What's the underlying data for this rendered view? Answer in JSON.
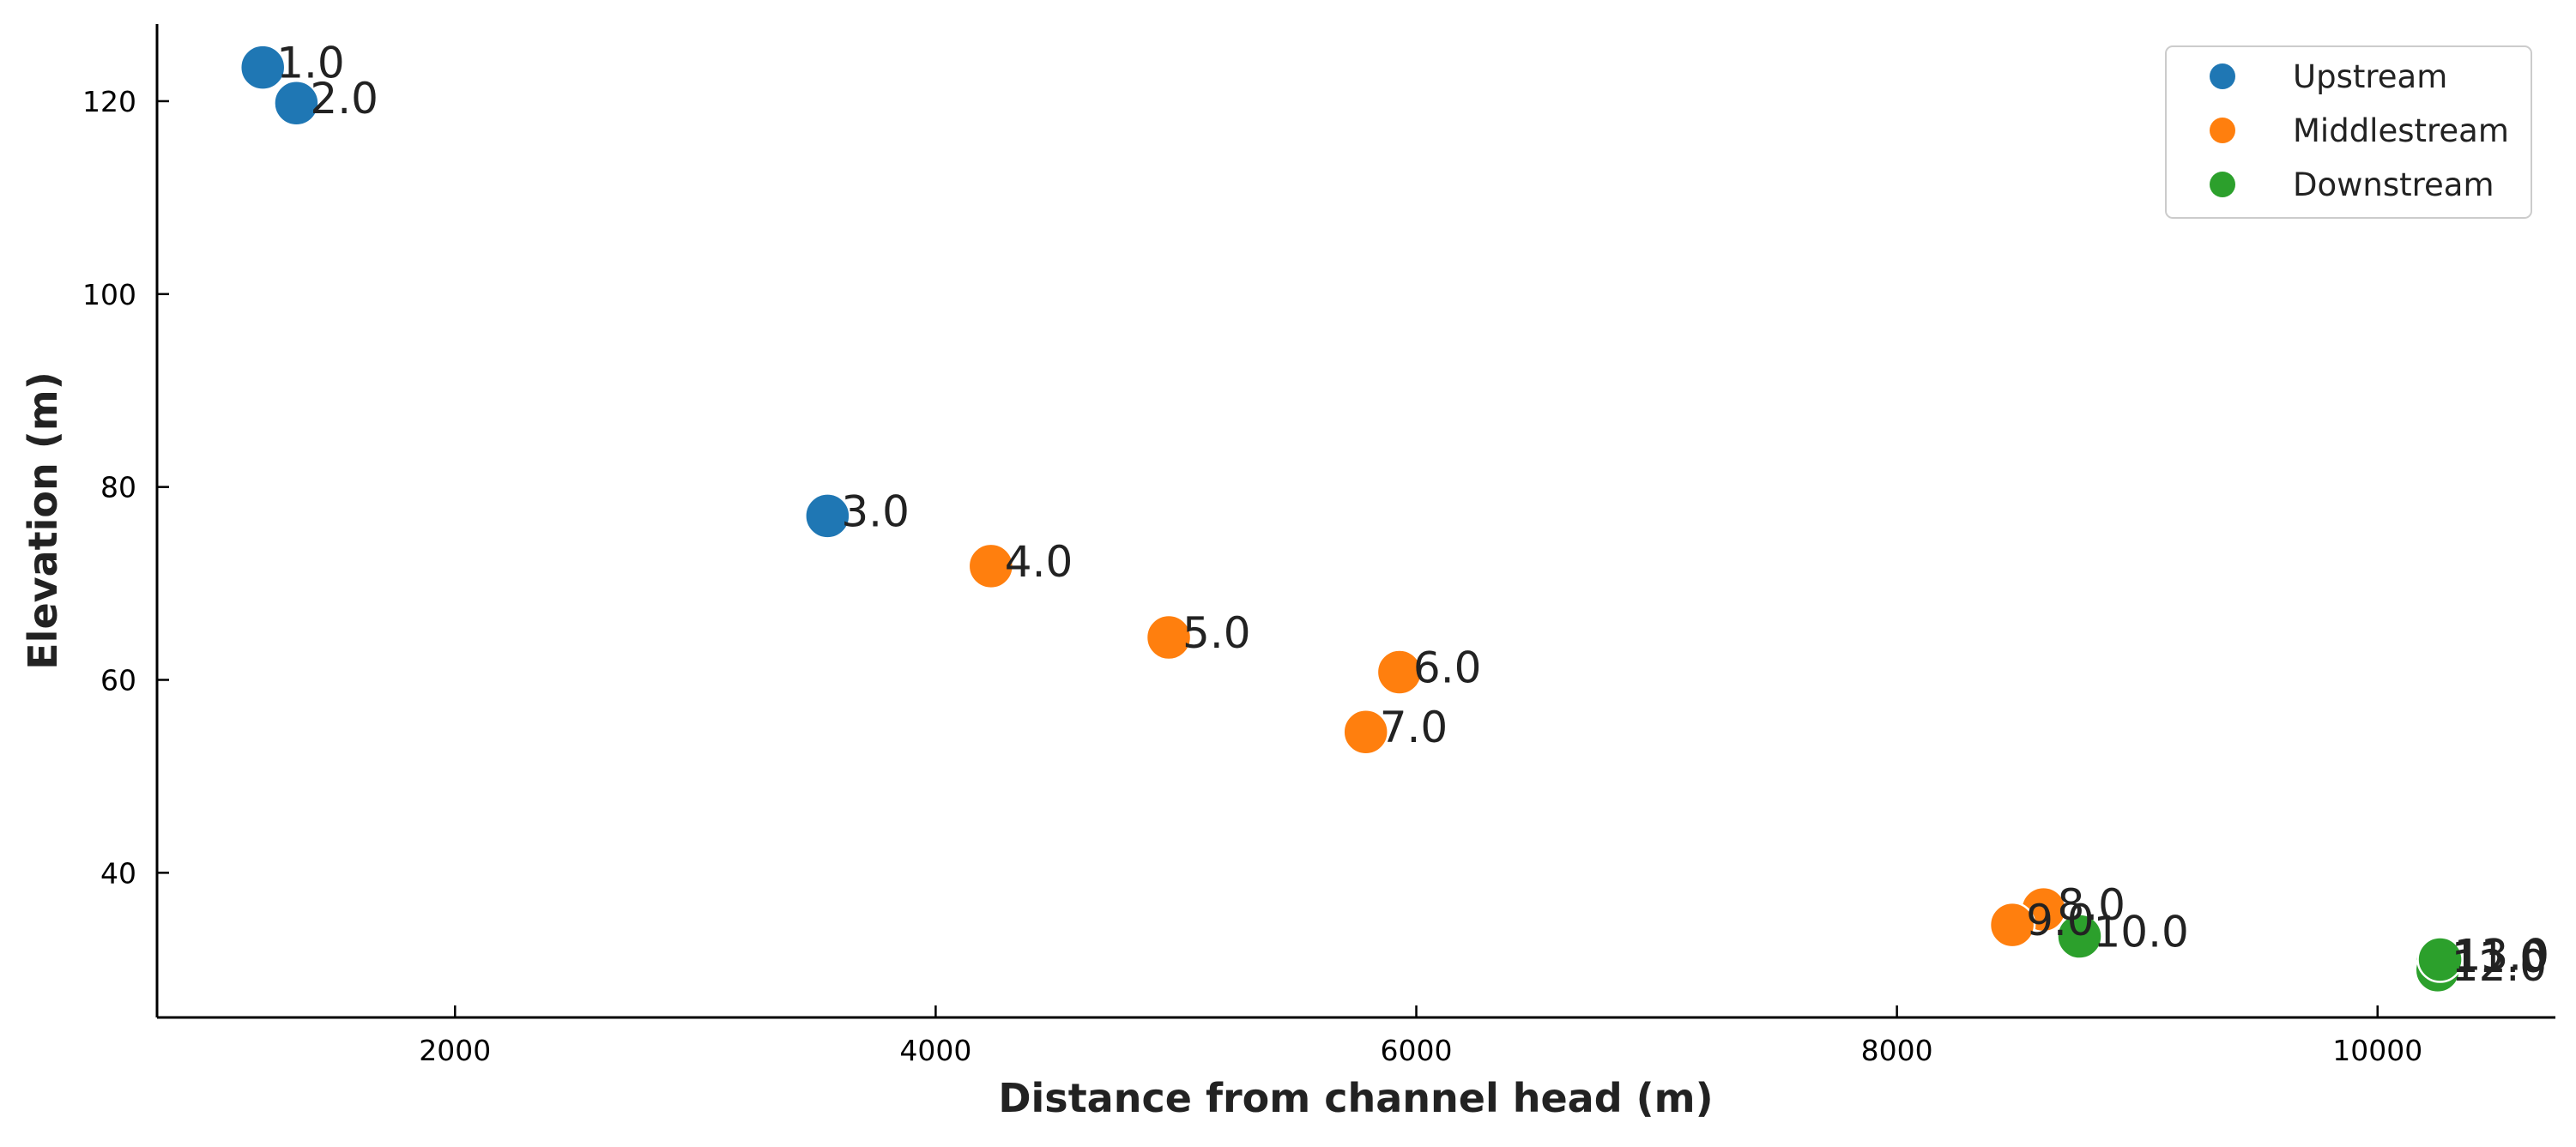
{
  "chart_data": {
    "type": "scatter",
    "title": "",
    "xlabel": "Distance from channel head (m)",
    "ylabel": "Elevation (m)",
    "xlim": [
      760,
      10740
    ],
    "ylim": [
      25,
      128
    ],
    "xticks": [
      2000,
      4000,
      6000,
      8000,
      10000
    ],
    "xtick_labels": [
      "2000",
      "4000",
      "6000",
      "8000",
      "10000"
    ],
    "yticks": [
      40,
      60,
      80,
      100,
      120
    ],
    "ytick_labels": [
      "40",
      "60",
      "80",
      "100",
      "120"
    ],
    "grid": false,
    "legend_position": "top-right",
    "series": [
      {
        "name": "Upstream",
        "color": "#1f77b4",
        "points": [
          {
            "label": "1.0",
            "x": 1200,
            "y": 123.5
          },
          {
            "label": "2.0",
            "x": 1340,
            "y": 119.8
          },
          {
            "label": "3.0",
            "x": 3550,
            "y": 77.0
          }
        ]
      },
      {
        "name": "Middlestream",
        "color": "#ff7f0e",
        "points": [
          {
            "label": "4.0",
            "x": 4230,
            "y": 71.8
          },
          {
            "label": "5.0",
            "x": 4970,
            "y": 64.4
          },
          {
            "label": "6.0",
            "x": 5930,
            "y": 60.8
          },
          {
            "label": "7.0",
            "x": 5790,
            "y": 54.6
          },
          {
            "label": "8.0",
            "x": 8610,
            "y": 36.2
          },
          {
            "label": "9.0",
            "x": 8480,
            "y": 34.6
          }
        ]
      },
      {
        "name": "Downstream",
        "color": "#2ca02c",
        "points": [
          {
            "label": "10.0",
            "x": 8760,
            "y": 33.4
          },
          {
            "label": "11.0",
            "x": 10250,
            "y": 30.8
          },
          {
            "label": "12.0",
            "x": 10250,
            "y": 29.9
          },
          {
            "label": "13.0",
            "x": 10260,
            "y": 31.0
          }
        ]
      }
    ]
  }
}
